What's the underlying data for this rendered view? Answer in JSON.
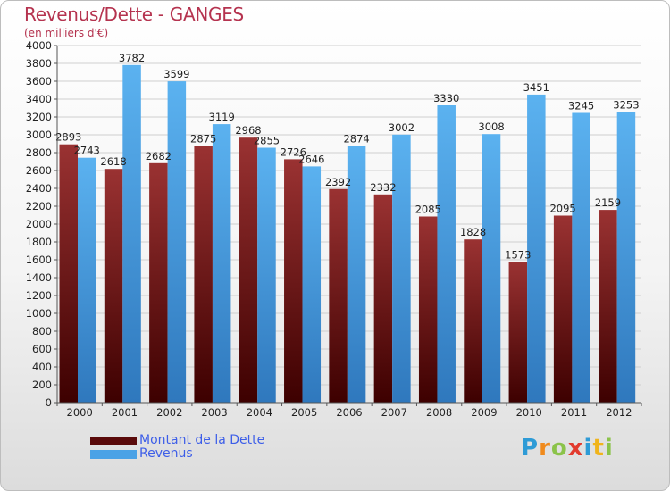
{
  "title": "Revenus/Dette - GANGES",
  "subtitle": "(en milliers d'€)",
  "colors": {
    "dette": "#7a1a1a",
    "revenus": "#4aa2e6",
    "title": "#b5334f",
    "legend_text": "#3d5ee8"
  },
  "legend": [
    {
      "label": "Montant de la Dette",
      "color": "#5a0a0a"
    },
    {
      "label": "Revenus",
      "color": "#4aa2e6"
    }
  ],
  "logo": {
    "letters": [
      "P",
      "r",
      "o",
      "x",
      "i",
      "t",
      "i"
    ],
    "colors": [
      "#2e9bd6",
      "#f08a1c",
      "#8bc34a",
      "#e23b2e",
      "#2e9bd6",
      "#f0b41c",
      "#8bc34a"
    ]
  },
  "chart_data": {
    "type": "bar",
    "title": "Revenus/Dette - GANGES",
    "ylabel": "(en milliers d'€)",
    "categories": [
      "2000",
      "2001",
      "2002",
      "2003",
      "2004",
      "2005",
      "2006",
      "2007",
      "2008",
      "2009",
      "2010",
      "2011",
      "2012"
    ],
    "series": [
      {
        "name": "Montant de la Dette",
        "values": [
          2893,
          2618,
          2682,
          2875,
          2968,
          2726,
          2392,
          2332,
          2085,
          1828,
          1573,
          2095,
          2159
        ]
      },
      {
        "name": "Revenus",
        "values": [
          2743,
          3782,
          3599,
          3119,
          2855,
          2646,
          2874,
          3002,
          3330,
          3008,
          3451,
          3245,
          3253
        ]
      }
    ],
    "ylim": [
      0,
      4000
    ],
    "yticks": [
      0,
      200,
      400,
      600,
      800,
      1000,
      1200,
      1400,
      1600,
      1800,
      2000,
      2200,
      2400,
      2600,
      2800,
      3000,
      3200,
      3400,
      3600,
      3800,
      4000
    ],
    "grid": true,
    "legend_position": "bottom-left"
  }
}
